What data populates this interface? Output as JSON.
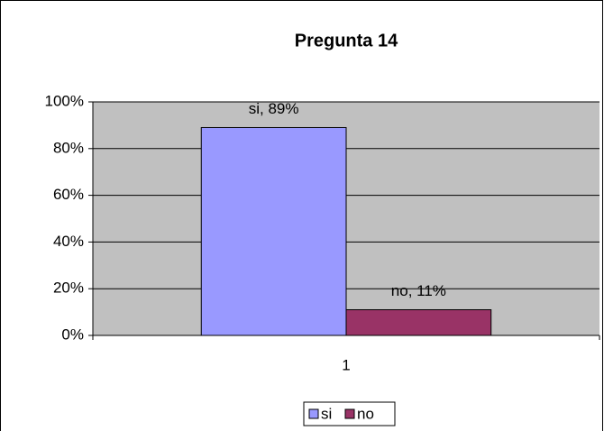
{
  "chart_data": {
    "type": "bar",
    "title": "Pregunta 14",
    "categories": [
      "1"
    ],
    "series": [
      {
        "name": "si",
        "color": "#9999ff",
        "values": [
          89
        ],
        "value_labels": [
          "si, 89%"
        ]
      },
      {
        "name": "no",
        "color": "#993366",
        "values": [
          11
        ],
        "value_labels": [
          "no, 11%"
        ]
      }
    ],
    "ylim": [
      0,
      100
    ],
    "yticks": [
      {
        "value": 0,
        "label": "0%"
      },
      {
        "value": 20,
        "label": "20%"
      },
      {
        "value": 40,
        "label": "40%"
      },
      {
        "value": 60,
        "label": "60%"
      },
      {
        "value": 80,
        "label": "80%"
      },
      {
        "value": 100,
        "label": "100%"
      }
    ],
    "grid": true,
    "legend": "bottom"
  }
}
